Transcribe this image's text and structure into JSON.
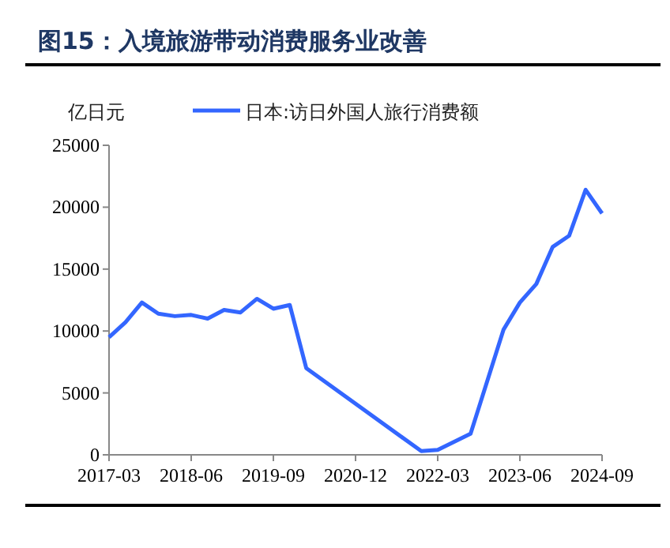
{
  "chart_data": {
    "type": "line",
    "title": "图15：入境旅游带动消费服务业改善",
    "ylabel": "亿日元",
    "x": [
      "2017-03",
      "2017-06",
      "2017-09",
      "2017-12",
      "2018-03",
      "2018-06",
      "2018-09",
      "2018-12",
      "2019-03",
      "2019-06",
      "2019-09",
      "2019-12",
      "2020-03",
      "2021-12",
      "2022-03",
      "2022-09",
      "2023-03",
      "2023-06",
      "2023-09",
      "2023-12",
      "2024-03",
      "2024-06",
      "2024-09"
    ],
    "series": [
      {
        "name": "日本:访日外国人旅行消费额",
        "color": "#3366ff",
        "values": [
          9500,
          10700,
          12300,
          11400,
          11200,
          11300,
          11000,
          11700,
          11500,
          12600,
          11800,
          12100,
          7000,
          300,
          400,
          1700,
          10100,
          12300,
          13800,
          16800,
          17700,
          21400,
          19500
        ]
      }
    ],
    "xlim": [
      "2017-03",
      "2024-09"
    ],
    "xticks": [
      "2017-03",
      "2018-06",
      "2019-09",
      "2020-12",
      "2022-03",
      "2023-06",
      "2024-09"
    ],
    "ylim": [
      0,
      25000
    ],
    "yticks": [
      0,
      5000,
      10000,
      15000,
      20000,
      25000
    ],
    "grid": false,
    "legend": "top",
    "marker": "none",
    "line_style": "solid"
  }
}
